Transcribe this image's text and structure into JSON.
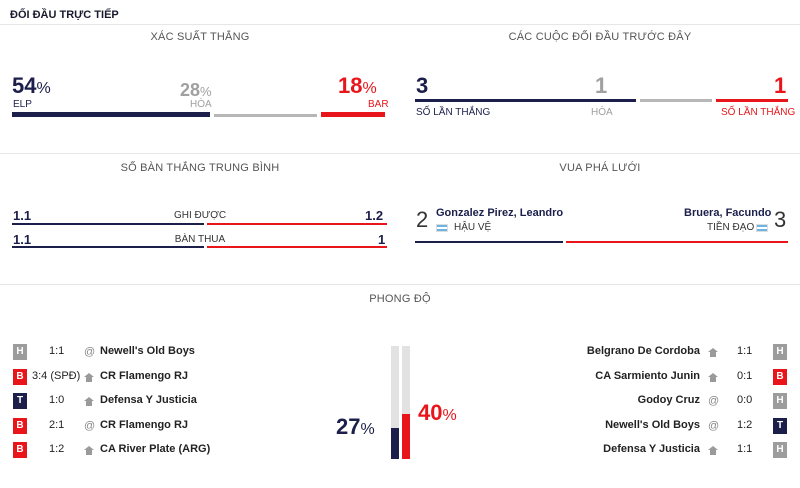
{
  "header": {
    "title": "ĐỐI ĐẦU TRỰC TIẾP"
  },
  "win_prob": {
    "title": "XÁC SUẤT THẮNG",
    "home_value": "54",
    "home_pct": "%",
    "home_label": "ELP",
    "draw_value": "28",
    "draw_pct": "%",
    "draw_label": "HÒA",
    "away_value": "18",
    "away_pct": "%",
    "away_label": "BAR"
  },
  "h2h": {
    "title": "CÁC CUỘC ĐỐI ĐẦU TRƯỚC ĐÂY",
    "home_wins": "3",
    "home_label": "SỐ LẦN THẮNG",
    "draws": "1",
    "draw_label": "HÒA",
    "away_wins": "1",
    "away_label": "SỐ LẦN THẮNG"
  },
  "avg_goals": {
    "title": "SỐ BÀN THẮNG TRUNG BÌNH",
    "scored_label": "GHI ĐƯỢC",
    "scored_home": "1.1",
    "scored_away": "1.2",
    "conceded_label": "BÀN THUA",
    "conceded_home": "1.1",
    "conceded_away": "1"
  },
  "top_scorers": {
    "title": "VUA PHÁ LƯỚI",
    "home": {
      "goals": "2",
      "name": "Gonzalez Pirez, Leandro",
      "position": "HẬU VỆ",
      "flag": "argentina-flag"
    },
    "away": {
      "goals": "3",
      "name": "Bruera, Facundo",
      "position": "TIỀN ĐẠO",
      "flag": "argentina-flag"
    }
  },
  "form": {
    "title": "PHONG ĐỘ",
    "home_pct": "27",
    "home_pct_sign": "%",
    "away_pct": "40",
    "away_pct_sign": "%",
    "home_form_fraction": 0.27,
    "away_form_fraction": 0.4,
    "home_matches": [
      {
        "result": "H",
        "score": "1:1",
        "venue": "away",
        "opponent": "Newell's Old Boys"
      },
      {
        "result": "B",
        "score": "3:4 (SPĐ)",
        "venue": "home",
        "opponent": "CR Flamengo RJ"
      },
      {
        "result": "T",
        "score": "1:0",
        "venue": "home",
        "opponent": "Defensa Y Justicia"
      },
      {
        "result": "B",
        "score": "2:1",
        "venue": "away",
        "opponent": "CR Flamengo RJ"
      },
      {
        "result": "B",
        "score": "1:2",
        "venue": "home",
        "opponent": "CA River Plate (ARG)"
      }
    ],
    "away_matches": [
      {
        "result": "H",
        "score": "1:1",
        "venue": "home",
        "opponent": "Belgrano De Cordoba"
      },
      {
        "result": "B",
        "score": "0:1",
        "venue": "home",
        "opponent": "CA Sarmiento Junin"
      },
      {
        "result": "H",
        "score": "0:0",
        "venue": "away",
        "opponent": "Godoy Cruz"
      },
      {
        "result": "T",
        "score": "1:2",
        "venue": "away",
        "opponent": "Newell's Old Boys"
      },
      {
        "result": "H",
        "score": "1:1",
        "venue": "home",
        "opponent": "Defensa Y Justicia"
      }
    ]
  },
  "colors": {
    "home": "#1b1f4a",
    "away": "#e8151b",
    "draw": "#b7b7b7"
  }
}
